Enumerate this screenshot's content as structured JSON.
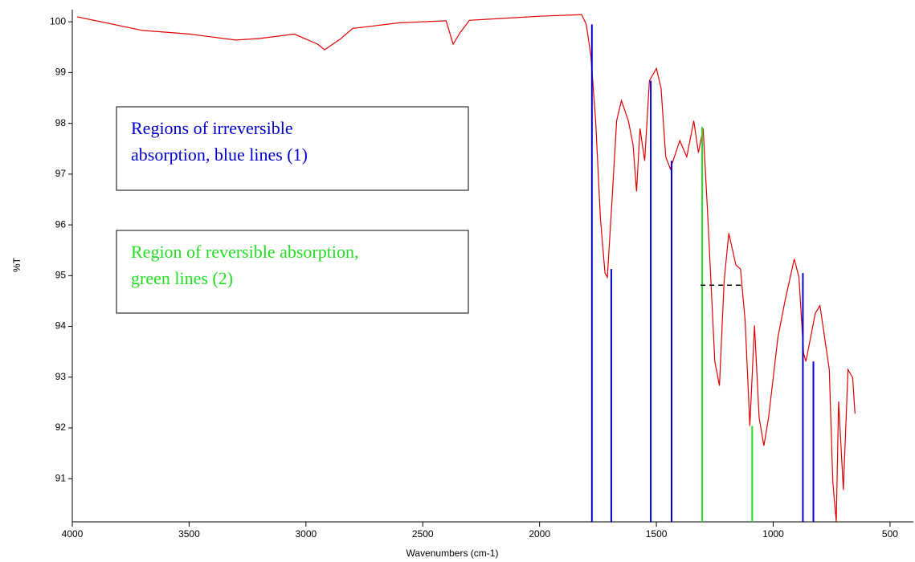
{
  "chart_data": {
    "type": "line",
    "x_label": "Wavenumbers (cm-1)",
    "y_label": "%T",
    "xlim": [
      4000,
      400
    ],
    "ylim": [
      90.15,
      100.24
    ],
    "xticks": [
      4000,
      3500,
      3000,
      2500,
      2000,
      1500,
      1000,
      500
    ],
    "yticks": [
      91,
      92,
      93,
      94,
      95,
      96,
      97,
      98,
      99,
      100
    ],
    "series": [
      {
        "color": "#e00000",
        "x": [
          3980,
          3700,
          3500,
          3300,
          3200,
          3050,
          2950,
          2920,
          2850,
          2800,
          2600,
          2400,
          2370,
          2340,
          2300,
          2000,
          1820,
          1800,
          1780,
          1760,
          1740,
          1720,
          1710,
          1690,
          1670,
          1650,
          1620,
          1600,
          1585,
          1570,
          1550,
          1530,
          1500,
          1480,
          1460,
          1440,
          1400,
          1370,
          1340,
          1320,
          1300,
          1280,
          1250,
          1230,
          1210,
          1190,
          1160,
          1140,
          1120,
          1100,
          1080,
          1060,
          1040,
          1020,
          1000,
          980,
          950,
          910,
          890,
          870,
          860,
          840,
          820,
          800,
          780,
          760,
          745,
          730,
          720,
          700,
          680,
          660,
          650
        ],
        "values": [
          100.1,
          99.83,
          99.76,
          99.64,
          99.67,
          99.76,
          99.56,
          99.45,
          99.67,
          99.87,
          99.98,
          100.02,
          99.56,
          99.79,
          100.03,
          100.11,
          100.14,
          99.95,
          99.32,
          98.05,
          96.15,
          95.05,
          94.97,
          96.47,
          98.05,
          98.45,
          98.05,
          97.58,
          96.66,
          97.9,
          97.26,
          98.84,
          99.08,
          98.69,
          97.34,
          97.1,
          97.66,
          97.34,
          98.05,
          97.42,
          97.9,
          96.15,
          93.31,
          92.83,
          94.89,
          95.84,
          95.21,
          95.13,
          94.1,
          92.04,
          94.02,
          92.2,
          91.65,
          92.2,
          92.99,
          93.78,
          94.49,
          95.33,
          94.97,
          93.47,
          93.31,
          93.78,
          94.26,
          94.41,
          93.78,
          93.15,
          90.93,
          90.16,
          92.52,
          90.78,
          93.15,
          92.99,
          92.28
        ]
      }
    ],
    "markers": [
      {
        "color": "#0000cc",
        "x": [
          1776,
          1693,
          1524,
          1435,
          873,
          828
        ],
        "values": [
          99.95,
          95.13,
          98.84,
          97.26,
          95.05,
          93.31
        ]
      },
      {
        "color": "#22dd22",
        "x": [
          1304,
          1090
        ],
        "values": [
          97.93,
          92.04
        ]
      }
    ],
    "dashed_line": {
      "color": "#000000",
      "x": [
        1311,
        1138
      ],
      "values": [
        94.81,
        94.81
      ]
    },
    "annotations": [
      {
        "color": "#0000cc",
        "lines": [
          "Regions of irreversible",
          "absorption, blue lines (1)"
        ]
      },
      {
        "color": "#22dd22",
        "lines": [
          "Region of reversible absorption,",
          "green lines (2)"
        ]
      }
    ]
  }
}
